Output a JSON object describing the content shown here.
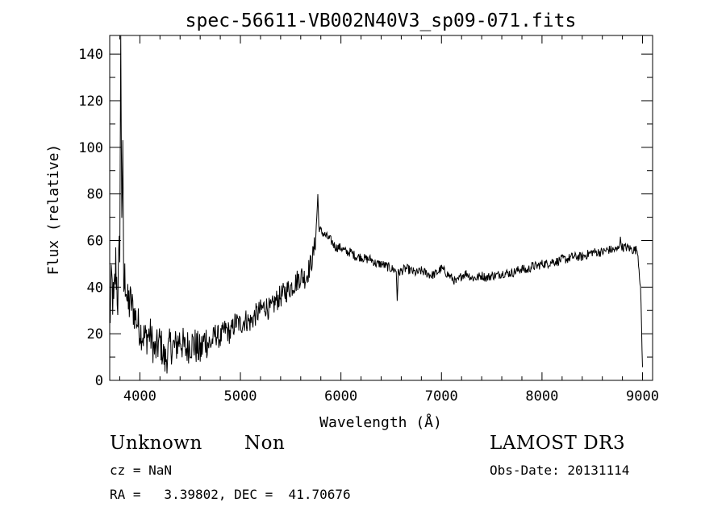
{
  "chart_data": {
    "type": "line",
    "title": "spec-56611-VB002N40V3_sp09-071.fits",
    "xlabel": "Wavelength (Å)",
    "ylabel": "Flux (relative)",
    "xlim": [
      3700,
      9100
    ],
    "ylim": [
      0,
      148
    ],
    "xticks": [
      4000,
      5000,
      6000,
      7000,
      8000,
      9000
    ],
    "yticks": [
      0,
      20,
      40,
      60,
      80,
      100,
      120,
      140
    ],
    "grid": false,
    "series": [
      {
        "x": [
          3700,
          3720,
          3740,
          3760,
          3780,
          3800,
          3810,
          3820,
          3830,
          3840,
          3860,
          3880,
          3900,
          3950,
          4000,
          4050,
          4100,
          4150,
          4200,
          4250,
          4300,
          4350,
          4400,
          4450,
          4500,
          4550,
          4600,
          4650,
          4700,
          4750,
          4800,
          4850,
          4900,
          4950,
          5000,
          5050,
          5100,
          5150,
          5200,
          5250,
          5300,
          5350,
          5400,
          5450,
          5500,
          5550,
          5600,
          5650,
          5700,
          5730,
          5750,
          5760,
          5770,
          5780,
          5800,
          5850,
          5900,
          5950,
          6000,
          6050,
          6100,
          6150,
          6200,
          6250,
          6300,
          6350,
          6400,
          6450,
          6500,
          6550,
          6560,
          6570,
          6600,
          6650,
          6700,
          6750,
          6800,
          6850,
          6900,
          6950,
          7000,
          7050,
          7100,
          7150,
          7200,
          7250,
          7300,
          7350,
          7400,
          7450,
          7500,
          7550,
          7600,
          7650,
          7700,
          7750,
          7800,
          7850,
          7900,
          7950,
          8000,
          8050,
          8100,
          8150,
          8200,
          8250,
          8300,
          8350,
          8400,
          8450,
          8500,
          8550,
          8600,
          8650,
          8700,
          8750,
          8780,
          8800,
          8850,
          8900,
          8950,
          8980,
          9000
        ],
        "y": [
          25,
          42,
          30,
          50,
          35,
          60,
          145,
          75,
          93,
          40,
          45,
          30,
          35,
          28,
          22,
          18,
          20,
          12,
          17,
          8,
          15,
          14,
          18,
          13,
          16,
          15,
          12,
          18,
          15,
          20,
          18,
          22,
          20,
          25,
          24,
          26,
          25,
          28,
          30,
          32,
          30,
          34,
          36,
          38,
          40,
          42,
          45,
          44,
          50,
          55,
          62,
          70,
          80,
          66,
          64,
          62,
          60,
          57,
          57,
          55,
          55,
          53,
          53,
          52,
          52,
          50,
          50,
          49,
          48,
          47,
          35,
          46,
          47,
          48,
          47,
          46,
          47,
          46,
          45,
          46,
          48,
          46,
          44,
          42,
          45,
          46,
          44,
          44,
          45,
          44,
          45,
          45,
          46,
          46,
          46,
          47,
          48,
          47,
          49,
          49,
          50,
          50,
          51,
          51,
          52,
          52,
          53,
          53,
          53,
          54,
          55,
          55,
          55,
          56,
          56,
          56,
          60,
          57,
          57,
          56,
          56,
          40,
          5
        ]
      }
    ]
  },
  "info": {
    "class": "Unknown",
    "subclass": "Non",
    "survey": "LAMOST DR3",
    "cz": "cz = NaN",
    "obs_date": "Obs-Date: 20131114",
    "coords": "RA =   3.39802, DEC =  41.70676"
  }
}
